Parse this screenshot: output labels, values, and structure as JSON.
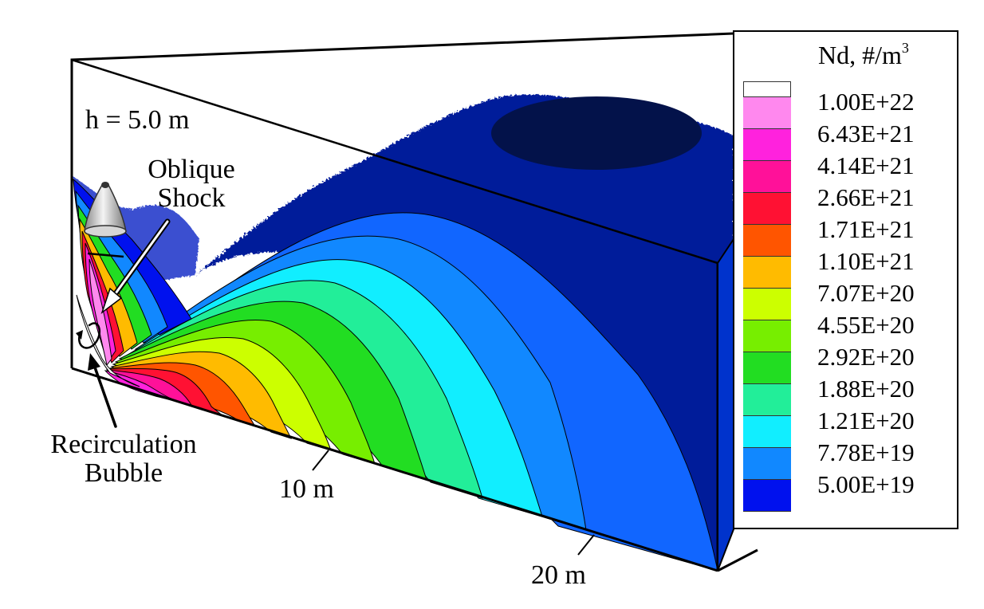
{
  "figure": {
    "height_label": "h = 5.0 m",
    "annotations": {
      "oblique_shock": [
        "Oblique",
        "Shock"
      ],
      "recirculation": [
        "Recirculation",
        "Bubble"
      ]
    },
    "distance_marks": [
      "10 m",
      "20 m"
    ]
  },
  "legend": {
    "title": "Nd, #/m",
    "title_sup": "3",
    "levels": [
      "1.00E+22",
      "6.43E+21",
      "4.14E+21",
      "2.66E+21",
      "1.71E+21",
      "1.10E+21",
      "7.07E+20",
      "4.55E+20",
      "2.92E+20",
      "1.88E+20",
      "1.21E+20",
      "7.78E+19",
      "5.00E+19"
    ],
    "colors": [
      "#ffffff",
      "#ff88ee",
      "#ff22dd",
      "#ff1199",
      "#ff1133",
      "#ff5500",
      "#ffbb00",
      "#ccff00",
      "#77ee00",
      "#22dd22",
      "#22ee99",
      "#11eeff",
      "#1188ff",
      "#0011ee"
    ]
  },
  "chart_data": {
    "type": "contour",
    "variable": "Nd, #/m3",
    "levels": [
      1e+22,
      6.43e+21,
      4.14e+21,
      2.66e+21,
      1.71e+21,
      1.1e+21,
      7.07e+20,
      4.55e+20,
      2.92e+20,
      1.88e+20,
      1.21e+20,
      7.78e+19,
      5e+19
    ],
    "distance_marks_m": [
      10,
      20
    ],
    "height_m": 5.0
  }
}
